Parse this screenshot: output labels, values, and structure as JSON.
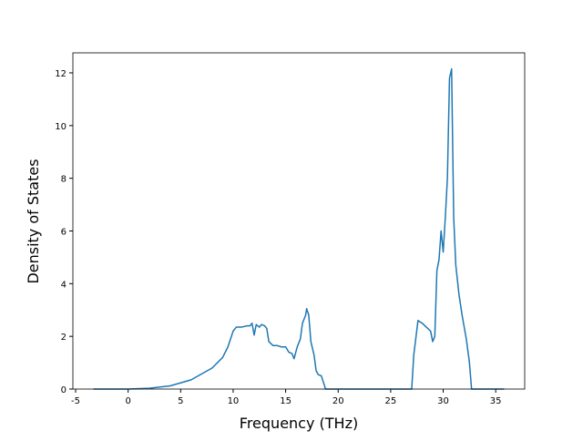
{
  "chart_data": {
    "type": "line",
    "x_label": "Frequency (THz)",
    "y_label": "Density of States",
    "x": [
      -3.3,
      0,
      2,
      4,
      6,
      8,
      9,
      9.5,
      10,
      10.3,
      10.8,
      11.3,
      11.6,
      11.8,
      12,
      12.2,
      12.5,
      12.7,
      13,
      13.2,
      13.4,
      13.8,
      14.2,
      14.6,
      15,
      15.3,
      15.6,
      15.8,
      16.1,
      16.4,
      16.6,
      16.9,
      17,
      17.2,
      17.4,
      17.7,
      17.9,
      18.1,
      18.4,
      18.8,
      27.0,
      27.2,
      27.6,
      28,
      28.4,
      28.8,
      29.0,
      29.2,
      29.4,
      29.6,
      29.8,
      30.0,
      30.2,
      30.4,
      30.6,
      30.8,
      31.0,
      31.2,
      31.5,
      31.8,
      32.2,
      32.5,
      32.7,
      35.8
    ],
    "series": [
      {
        "color": "#1f77b4",
        "values": [
          0,
          0,
          0.03,
          0.12,
          0.35,
          0.8,
          1.2,
          1.6,
          2.2,
          2.35,
          2.35,
          2.4,
          2.4,
          2.5,
          2.05,
          2.45,
          2.35,
          2.45,
          2.4,
          2.3,
          1.8,
          1.65,
          1.65,
          1.6,
          1.6,
          1.4,
          1.35,
          1.15,
          1.6,
          1.9,
          2.5,
          2.8,
          3.05,
          2.8,
          1.8,
          1.3,
          0.7,
          0.55,
          0.5,
          0,
          0,
          1.3,
          2.6,
          2.5,
          2.35,
          2.2,
          1.8,
          2.0,
          4.5,
          4.9,
          6.0,
          5.2,
          6.5,
          8.0,
          11.8,
          12.15,
          6.5,
          4.7,
          3.6,
          2.8,
          1.9,
          1.0,
          0,
          0
        ]
      }
    ],
    "xlim": [
      -5.26,
      37.76
    ],
    "ylim": [
      0,
      12.76
    ],
    "xticks": [
      -5,
      0,
      5,
      10,
      15,
      20,
      25,
      30,
      35
    ],
    "yticks": [
      0,
      2,
      4,
      6,
      8,
      10,
      12
    ]
  }
}
